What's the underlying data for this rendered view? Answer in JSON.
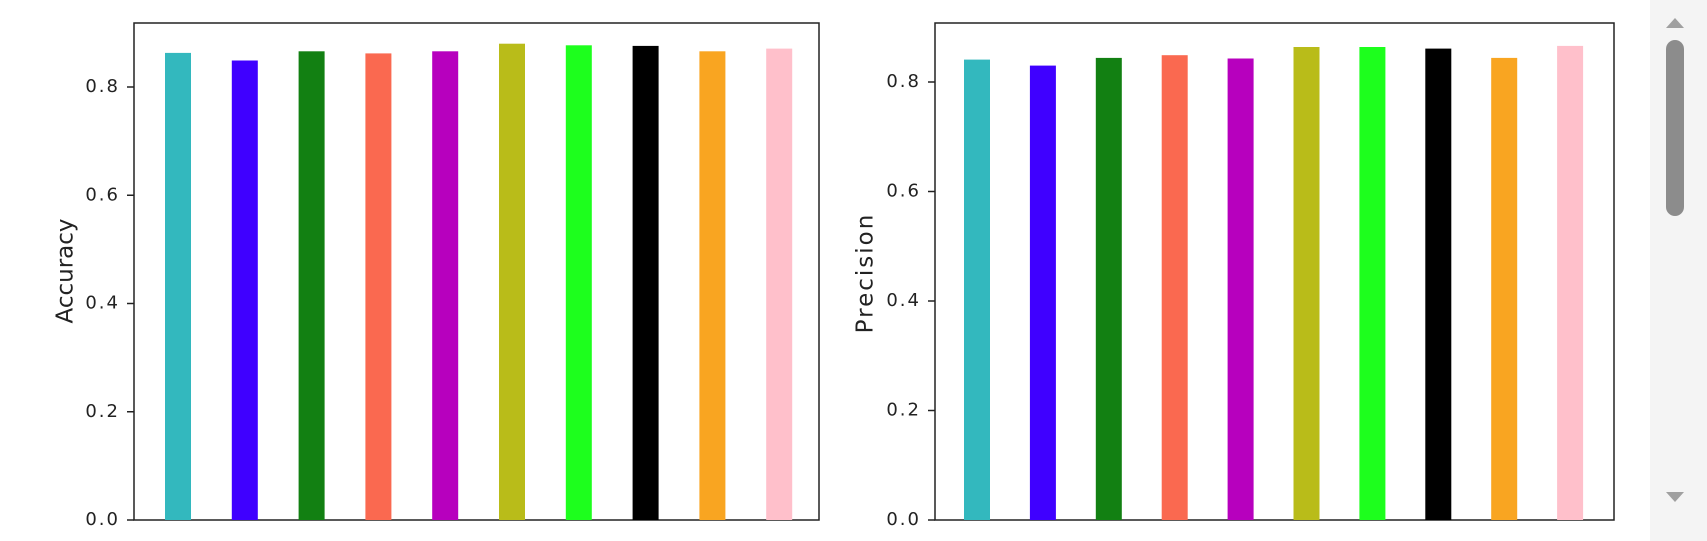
{
  "chart_data": [
    {
      "type": "bar",
      "ylabel": "Accuracy",
      "ylim": [
        0,
        0.92
      ],
      "yticks": [
        "0.0",
        "0.2",
        "0.4",
        "0.6",
        "0.8"
      ],
      "grid": false,
      "bars": [
        {
          "value": 0.863,
          "color": "#33b8be"
        },
        {
          "value": 0.849,
          "color": "#3f00ff"
        },
        {
          "value": 0.866,
          "color": "#128012"
        },
        {
          "value": 0.862,
          "color": "#fa6950"
        },
        {
          "value": 0.866,
          "color": "#b700be"
        },
        {
          "value": 0.88,
          "color": "#b9bc19"
        },
        {
          "value": 0.877,
          "color": "#1dff1d"
        },
        {
          "value": 0.876,
          "color": "#000000"
        },
        {
          "value": 0.866,
          "color": "#f9a521"
        },
        {
          "value": 0.871,
          "color": "#ffc0cb"
        }
      ]
    },
    {
      "type": "bar",
      "ylabel": "Precision",
      "ylim": [
        0,
        0.92
      ],
      "yticks": [
        "0.0",
        "0.2",
        "0.4",
        "0.6",
        "0.8"
      ],
      "grid": false,
      "bars": [
        {
          "value": 0.841,
          "color": "#33b8be"
        },
        {
          "value": 0.83,
          "color": "#3f00ff"
        },
        {
          "value": 0.844,
          "color": "#128012"
        },
        {
          "value": 0.849,
          "color": "#fa6950"
        },
        {
          "value": 0.843,
          "color": "#b700be"
        },
        {
          "value": 0.864,
          "color": "#b9bc19"
        },
        {
          "value": 0.864,
          "color": "#1dff1d"
        },
        {
          "value": 0.861,
          "color": "#000000"
        },
        {
          "value": 0.844,
          "color": "#f9a521"
        },
        {
          "value": 0.866,
          "color": "#ffc0cb"
        }
      ]
    }
  ]
}
